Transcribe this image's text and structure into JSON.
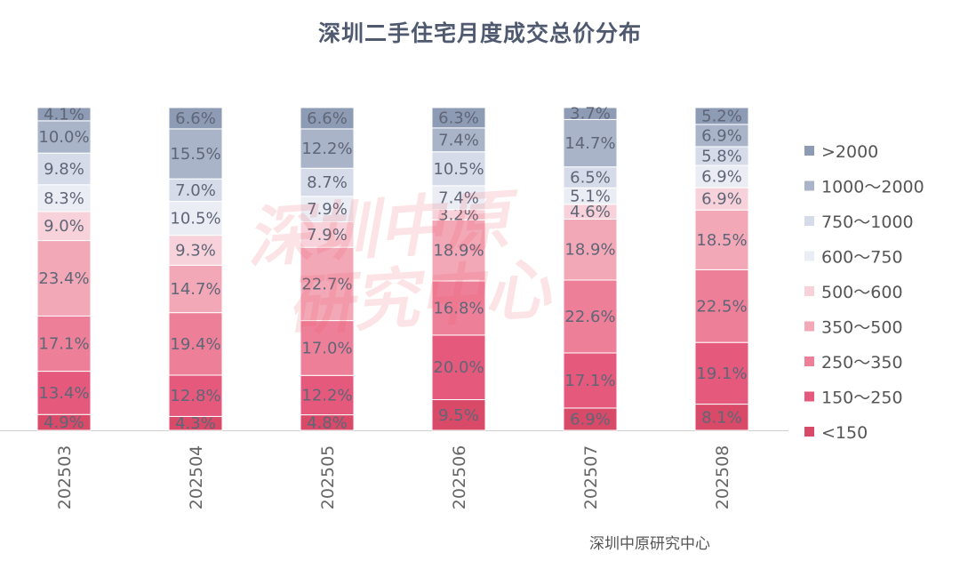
{
  "title": "深圳二手住宅月度成交总价分布",
  "source": "深圳中原研究中心",
  "watermark": {
    "line1": "深圳中原",
    "line2": "研究中心"
  },
  "chart_data": {
    "type": "bar",
    "stacked": true,
    "normalized_percent": true,
    "title": "深圳二手住宅月度成交总价分布",
    "xlabel": "",
    "ylabel": "",
    "categories": [
      "202503",
      "202504",
      "202505",
      "202506",
      "202507",
      "202508"
    ],
    "legend_position": "right",
    "grid": false,
    "series": [
      {
        "name": "<150",
        "color": "#d84a68",
        "values": [
          4.9,
          4.3,
          4.8,
          9.5,
          6.9,
          8.1
        ]
      },
      {
        "name": "150～250",
        "color": "#e5597c",
        "values": [
          13.4,
          12.8,
          12.2,
          20.0,
          17.1,
          19.1
        ]
      },
      {
        "name": "250～350",
        "color": "#ee7f98",
        "values": [
          17.1,
          19.4,
          17.0,
          16.8,
          22.6,
          22.5
        ]
      },
      {
        "name": "350～500",
        "color": "#f3a8b8",
        "values": [
          23.4,
          14.7,
          22.7,
          18.9,
          18.9,
          18.5
        ]
      },
      {
        "name": "500～600",
        "color": "#f8d2da",
        "values": [
          9.0,
          9.3,
          7.9,
          3.2,
          4.6,
          6.9
        ]
      },
      {
        "name": "600～750",
        "color": "#ebedf5",
        "values": [
          8.3,
          10.5,
          7.9,
          7.4,
          5.1,
          6.9
        ]
      },
      {
        "name": "750～1000",
        "color": "#d5dbe8",
        "values": [
          9.8,
          7.0,
          8.7,
          10.5,
          6.5,
          5.8
        ]
      },
      {
        "name": "1000～2000",
        "color": "#a9b4c9",
        "values": [
          10.0,
          15.5,
          12.2,
          7.4,
          14.7,
          6.9
        ]
      },
      {
        "name": ">2000",
        "color": "#8e9bb5",
        "values": [
          4.1,
          6.6,
          6.6,
          6.3,
          3.7,
          5.2
        ]
      }
    ]
  }
}
